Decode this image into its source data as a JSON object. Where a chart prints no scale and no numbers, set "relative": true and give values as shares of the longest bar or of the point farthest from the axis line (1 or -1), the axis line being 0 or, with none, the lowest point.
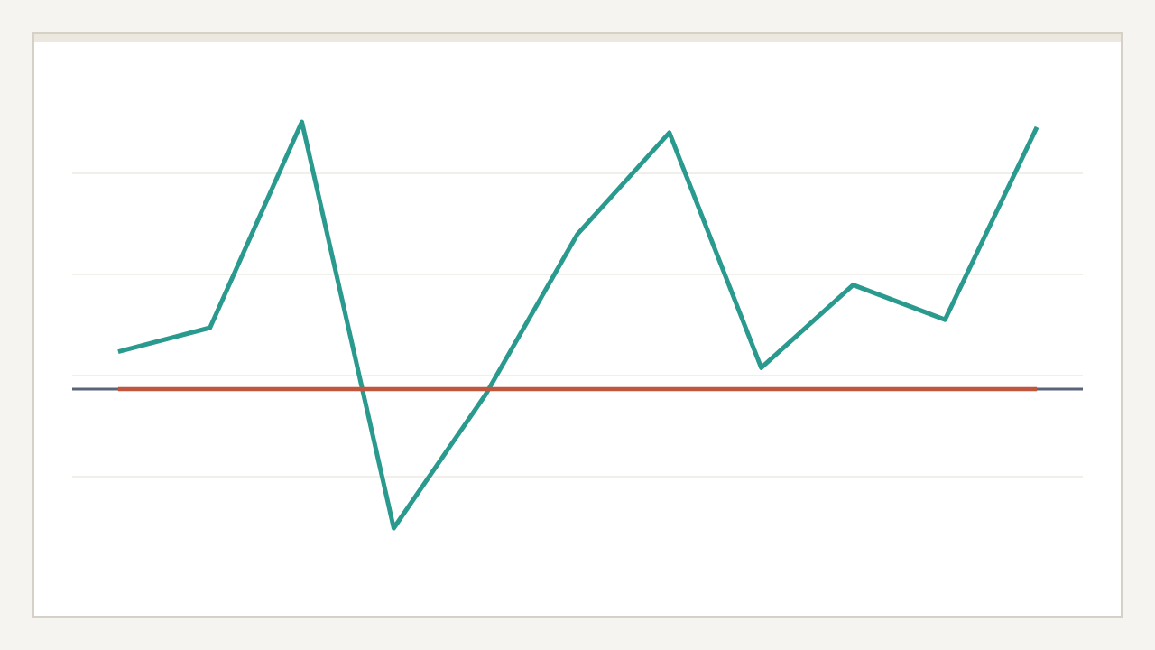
{
  "chart_data": {
    "type": "line",
    "relative": true,
    "grid": "y",
    "categories": [
      null,
      null,
      null,
      null,
      null,
      null,
      null,
      null,
      null,
      null,
      null
    ],
    "series": [
      {
        "color": "#2a9a8e",
        "values": [
          0.14,
          0.23,
          1,
          -0.52,
          -0.02,
          0.58,
          0.96,
          0.08,
          0.39,
          0.26,
          0.98
        ]
      },
      {
        "color": "#c0563e",
        "values": [
          0,
          0,
          0,
          0,
          0,
          0,
          0,
          0,
          0,
          0,
          0
        ]
      }
    ]
  }
}
